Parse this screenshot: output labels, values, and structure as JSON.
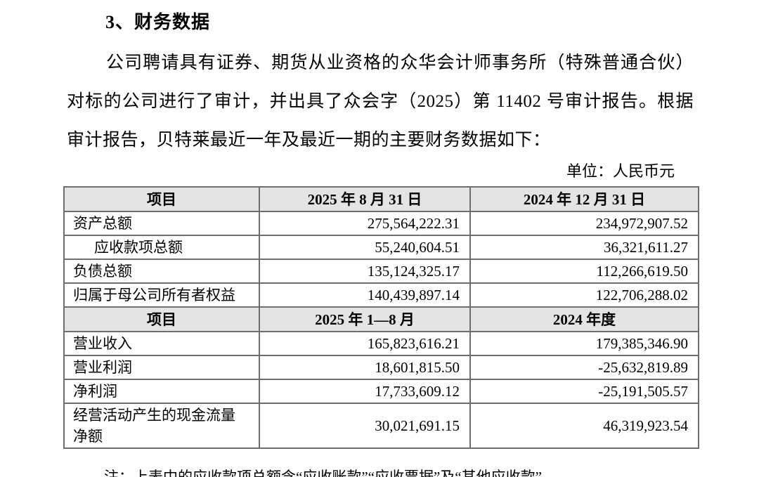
{
  "doc": {
    "section_title": "3、财务数据",
    "paragraph": "公司聘请具有证券、期货从业资格的众华会计师事务所（特殊普通合伙）对标的公司进行了审计，并出具了众会字（2025）第 11402 号审计报告。根据审计报告，贝特莱最近一年及最近一期的主要财务数据如下：",
    "unit_label": "单位：人民币元",
    "note": "注：上表中的应收款项总额含“应收账款”“应收票据”及“其他应收款”。"
  },
  "table": {
    "balance_header": {
      "item": "项目",
      "period1": "2025 年 8 月 31 日",
      "period2": "2024 年 12 月 31 日"
    },
    "balance_rows": [
      {
        "label": "资产总额",
        "v1": "275,564,222.31",
        "v2": "234,972,907.52"
      },
      {
        "label": "应收款项总额",
        "v1": "55,240,604.51",
        "v2": "36,321,611.27"
      },
      {
        "label": "负债总额",
        "v1": "135,124,325.17",
        "v2": "112,266,619.50"
      },
      {
        "label": "归属于母公司所有者权益",
        "v1": "140,439,897.14",
        "v2": "122,706,288.02"
      }
    ],
    "income_header": {
      "item": "项目",
      "period1": "2025 年 1—8 月",
      "period2": "2024 年度"
    },
    "income_rows": [
      {
        "label": "营业收入",
        "v1": "165,823,616.21",
        "v2": "179,385,346.90"
      },
      {
        "label": "营业利润",
        "v1": "18,601,815.50",
        "v2": "-25,632,819.89"
      },
      {
        "label": "净利润",
        "v1": "17,733,609.12",
        "v2": "-25,191,505.57"
      },
      {
        "label": "经营活动产生的现金流量净额",
        "v1": "30,021,691.15",
        "v2": "46,319,923.54"
      }
    ],
    "colors": {
      "header_bg": "#e4e4e4",
      "border_outer": "#4a4a4a",
      "border_inner": "#6e6e6e"
    }
  }
}
